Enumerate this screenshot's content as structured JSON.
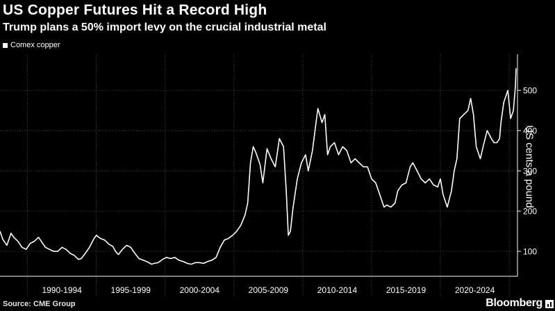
{
  "header": {
    "title": "US Copper Futures Hit a Record High",
    "subtitle": "Trump plans a 50% import levy on the crucial industrial metal"
  },
  "footer": {
    "source": "Source: CME Group",
    "brand": "Bloomberg"
  },
  "colors": {
    "background": "#000000",
    "line": "#ffffff",
    "grid": "#555555",
    "text": "#ffffff"
  },
  "chart_data": {
    "type": "line",
    "title": "US Copper Futures Hit a Record High",
    "subtitle": "Trump plans a 50% import levy on the crucial industrial metal",
    "ylabel": "US cents a pound",
    "xlabel": "",
    "legend": {
      "entries": [
        "Comex copper"
      ],
      "placement": "top-left"
    },
    "grid": true,
    "xlim": [
      1988.0,
      2025.6
    ],
    "ylim": [
      38,
      590
    ],
    "y_ticks": [
      100,
      200,
      300,
      400,
      500
    ],
    "x_period_labels": [
      "1990-1994",
      "1995-1999",
      "2000-2004",
      "2005-2009",
      "2010-2014",
      "2015-2019",
      "2020-2024"
    ],
    "series": [
      {
        "name": "Comex copper",
        "x": [
          1988.0,
          1988.2,
          1988.5,
          1988.8,
          1989.0,
          1989.3,
          1989.6,
          1989.9,
          1990.2,
          1990.5,
          1990.8,
          1991.0,
          1991.3,
          1991.6,
          1991.9,
          1992.2,
          1992.5,
          1992.8,
          1993.1,
          1993.4,
          1993.7,
          1993.9,
          1994.2,
          1994.5,
          1994.8,
          1995.0,
          1995.3,
          1995.6,
          1995.9,
          1996.2,
          1996.4,
          1996.6,
          1996.9,
          1997.2,
          1997.5,
          1997.8,
          1998.1,
          1998.4,
          1998.7,
          1999.0,
          1999.2,
          1999.5,
          1999.8,
          2000.1,
          2000.4,
          2000.7,
          2001.0,
          2001.3,
          2001.6,
          2001.9,
          2002.2,
          2002.5,
          2002.8,
          2003.1,
          2003.4,
          2003.7,
          2004.0,
          2004.3,
          2004.6,
          2004.9,
          2005.2,
          2005.5,
          2005.8,
          2006.0,
          2006.2,
          2006.4,
          2006.6,
          2006.9,
          2007.1,
          2007.4,
          2007.7,
          2008.0,
          2008.3,
          2008.6,
          2008.8,
          2008.95,
          2009.1,
          2009.3,
          2009.6,
          2009.9,
          2010.2,
          2010.4,
          2010.7,
          2011.0,
          2011.1,
          2011.4,
          2011.6,
          2011.8,
          2012.0,
          2012.3,
          2012.6,
          2012.9,
          2013.2,
          2013.5,
          2013.8,
          2014.1,
          2014.4,
          2014.7,
          2015.0,
          2015.3,
          2015.6,
          2015.9,
          2016.1,
          2016.4,
          2016.7,
          2016.9,
          2017.2,
          2017.5,
          2017.8,
          2018.0,
          2018.3,
          2018.6,
          2018.9,
          2019.2,
          2019.5,
          2019.8,
          2020.0,
          2020.2,
          2020.5,
          2020.8,
          2021.0,
          2021.2,
          2021.4,
          2021.7,
          2022.0,
          2022.2,
          2022.4,
          2022.6,
          2022.9,
          2023.1,
          2023.4,
          2023.7,
          2023.9,
          2024.1,
          2024.3,
          2024.4,
          2024.6,
          2024.9,
          2025.1,
          2025.3,
          2025.45,
          2025.5
        ],
        "values": [
          150,
          130,
          115,
          145,
          135,
          125,
          110,
          105,
          120,
          125,
          135,
          125,
          110,
          105,
          100,
          100,
          110,
          105,
          95,
          90,
          80,
          82,
          95,
          110,
          130,
          140,
          132,
          128,
          118,
          112,
          100,
          92,
          105,
          115,
          110,
          95,
          82,
          78,
          74,
          68,
          70,
          72,
          80,
          85,
          82,
          85,
          78,
          75,
          70,
          68,
          72,
          72,
          70,
          75,
          78,
          85,
          110,
          128,
          132,
          140,
          150,
          165,
          190,
          220,
          320,
          360,
          345,
          315,
          270,
          355,
          330,
          310,
          380,
          360,
          250,
          140,
          150,
          210,
          280,
          320,
          340,
          300,
          350,
          430,
          455,
          420,
          440,
          340,
          360,
          370,
          340,
          360,
          350,
          320,
          330,
          320,
          310,
          310,
          280,
          270,
          240,
          210,
          215,
          210,
          220,
          250,
          265,
          270,
          310,
          320,
          300,
          280,
          270,
          280,
          265,
          260,
          280,
          240,
          210,
          250,
          300,
          330,
          430,
          440,
          450,
          480,
          440,
          360,
          330,
          360,
          400,
          380,
          370,
          370,
          380,
          420,
          470,
          500,
          430,
          450,
          510,
          555
        ]
      }
    ]
  }
}
